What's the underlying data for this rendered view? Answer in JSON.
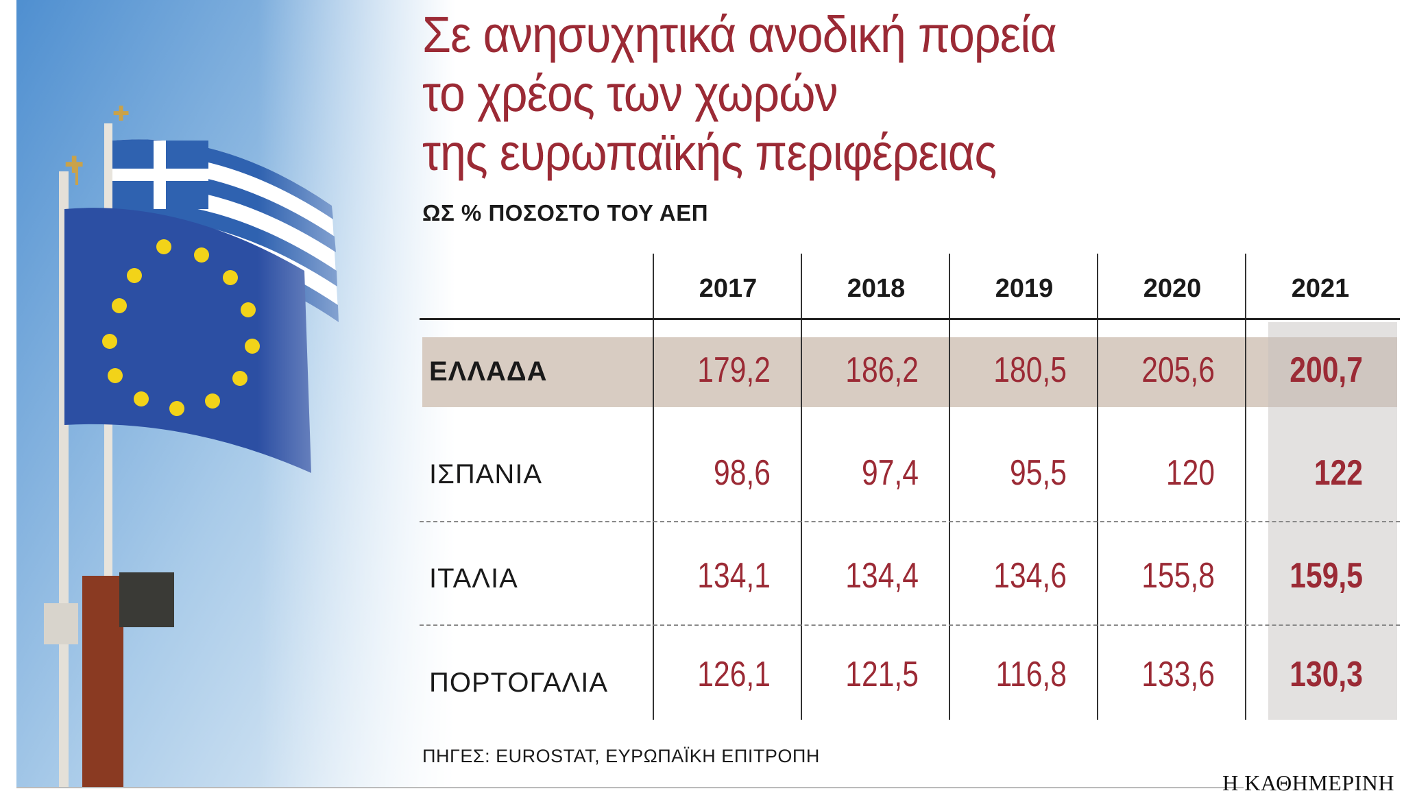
{
  "title_lines": [
    "Σε ανησυχητικά ανοδική πορεία",
    "το χρέος των χωρών",
    "της ευρωπαϊκής περιφέρειας"
  ],
  "subtitle": "ΩΣ % ΠΟΣΟΣΤΟ ΤΟΥ ΑΕΠ",
  "source": "ΠΗΓΕΣ: EUROSTAT, ΕΥΡΩΠΑΪΚΗ ΕΠΙΤΡΟΠΗ",
  "brand": "Η ΚΑΘΗΜΕΡΙΝΗ",
  "colors": {
    "accent": "#9b2a35",
    "greece_row": "#d8ccc2",
    "col_2021": "#e3e1e0"
  },
  "chart_data": {
    "type": "table",
    "columns": [
      "2017",
      "2018",
      "2019",
      "2020",
      "2021"
    ],
    "rows": [
      {
        "label": "ΕΛΛΑΔΑ",
        "values": [
          "179,2",
          "186,2",
          "180,5",
          "205,6",
          "200,7"
        ]
      },
      {
        "label": "ΙΣΠΑΝΙΑ",
        "values": [
          "98,6",
          "97,4",
          "95,5",
          "120",
          "122"
        ]
      },
      {
        "label": "ΙΤΑΛΙΑ",
        "values": [
          "134,1",
          "134,4",
          "134,6",
          "155,8",
          "159,5"
        ]
      },
      {
        "label": "ΠΟΡΤΟΓΑΛΙΑ",
        "values": [
          "126,1",
          "121,5",
          "116,8",
          "133,6",
          "130,3"
        ]
      }
    ]
  }
}
